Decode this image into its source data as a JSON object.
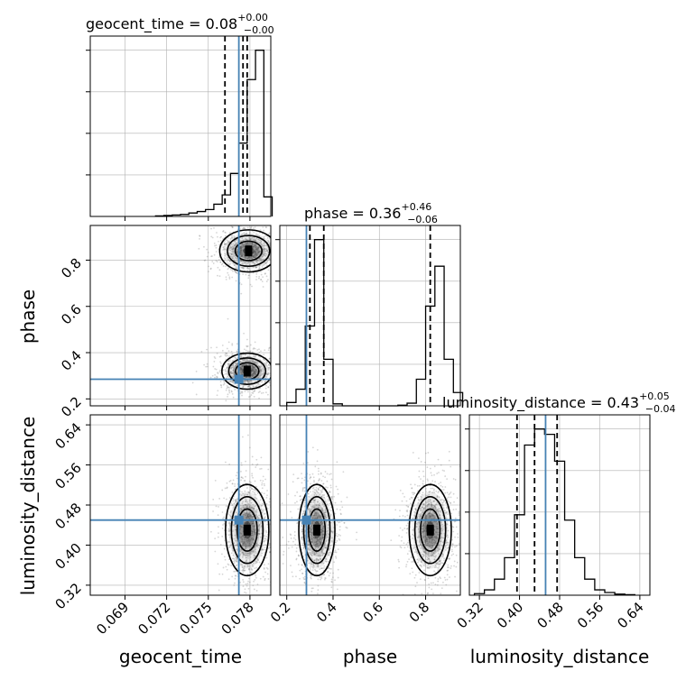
{
  "chart_data": [
    {
      "type": "histogram",
      "panel": "geocent_time",
      "title": {
        "name": "geocent_time",
        "value": "0.08",
        "plus": "+0.00",
        "minus": "−0.00"
      },
      "x_range": [
        0.0665,
        0.0795
      ],
      "bins": [
        0.0712,
        0.0718,
        0.0724,
        0.073,
        0.0736,
        0.0742,
        0.0748,
        0.0754,
        0.076,
        0.0766,
        0.0772,
        0.0778,
        0.0784,
        0.079
      ],
      "values": [
        1,
        2,
        3,
        4,
        7,
        10,
        14,
        25,
        44,
        88,
        150,
        280,
        340,
        40
      ],
      "quantiles": [
        0.0762,
        0.0775,
        0.0778
      ],
      "truth": 0.0772
    },
    {
      "type": "contour",
      "panel": "phase vs geocent_time",
      "x_range": [
        0.0665,
        0.0795
      ],
      "y_range": [
        0.17,
        0.95
      ],
      "truth": {
        "x": 0.0772,
        "y": 0.285
      },
      "modes": [
        {
          "x": 0.0778,
          "y": 0.32,
          "sx": 0.0007,
          "sy": 0.03
        },
        {
          "x": 0.0779,
          "y": 0.84,
          "sx": 0.0008,
          "sy": 0.035
        }
      ]
    },
    {
      "type": "histogram",
      "panel": "phase",
      "title": {
        "name": "phase",
        "value": "0.36",
        "plus": "+0.46",
        "minus": "−0.06"
      },
      "x_range": [
        0.17,
        0.95
      ],
      "bins": [
        0.2,
        0.24,
        0.28,
        0.32,
        0.36,
        0.4,
        0.44,
        0.48,
        0.52,
        0.56,
        0.6,
        0.64,
        0.68,
        0.72,
        0.76,
        0.8,
        0.84,
        0.88,
        0.92
      ],
      "values": [
        5,
        25,
        120,
        250,
        70,
        3,
        0,
        0,
        0,
        0,
        0,
        0,
        1,
        4,
        40,
        150,
        210,
        70,
        20
      ],
      "quantiles": [
        0.3,
        0.36,
        0.82
      ],
      "truth": 0.285
    },
    {
      "type": "contour",
      "panel": "luminosity_distance vs geocent_time",
      "x_range": [
        0.0665,
        0.0795
      ],
      "y_range": [
        0.3,
        0.66
      ],
      "yticks": [
        "0.32",
        "0.40",
        "0.48",
        "0.56",
        "0.64"
      ],
      "truth": {
        "x": 0.0772,
        "y": 0.45
      },
      "modes": [
        {
          "x": 0.0778,
          "y": 0.43,
          "sx": 0.0006,
          "sy": 0.035
        }
      ]
    },
    {
      "type": "contour",
      "panel": "luminosity_distance vs phase",
      "x_range": [
        0.17,
        0.95
      ],
      "y_range": [
        0.3,
        0.66
      ],
      "truth": {
        "x": 0.285,
        "y": 0.45
      },
      "modes": [
        {
          "x": 0.33,
          "y": 0.43,
          "sx": 0.03,
          "sy": 0.035
        },
        {
          "x": 0.82,
          "y": 0.43,
          "sx": 0.035,
          "sy": 0.035
        }
      ]
    },
    {
      "type": "histogram",
      "panel": "luminosity_distance",
      "title": {
        "name": "luminosity_distance",
        "value": "0.43",
        "plus": "+0.05",
        "minus": "−0.04"
      },
      "x_range": [
        0.3,
        0.66
      ],
      "bins": [
        0.31,
        0.33,
        0.35,
        0.37,
        0.39,
        0.41,
        0.43,
        0.45,
        0.47,
        0.49,
        0.51,
        0.53,
        0.55,
        0.57,
        0.59,
        0.61
      ],
      "values": [
        3,
        10,
        30,
        70,
        150,
        280,
        310,
        300,
        250,
        140,
        70,
        30,
        10,
        5,
        2,
        1
      ],
      "quantiles": [
        0.395,
        0.43,
        0.475
      ],
      "truth": 0.452
    }
  ],
  "axes": {
    "geocent_time": {
      "label": "geocent_time",
      "ticks": [
        {
          "v": 0.069,
          "t": "0.069"
        },
        {
          "v": 0.072,
          "t": "0.072"
        },
        {
          "v": 0.075,
          "t": "0.075"
        },
        {
          "v": 0.078,
          "t": "0.078"
        }
      ]
    },
    "phase": {
      "label": "phase",
      "ticks": [
        {
          "v": 0.2,
          "t": "0.2"
        },
        {
          "v": 0.4,
          "t": "0.4"
        },
        {
          "v": 0.6,
          "t": "0.6"
        },
        {
          "v": 0.8,
          "t": "0.8"
        }
      ]
    },
    "luminosity_distance": {
      "label": "luminosity_distance",
      "ticks": [
        {
          "v": 0.32,
          "t": "0.32"
        },
        {
          "v": 0.4,
          "t": "0.40"
        },
        {
          "v": 0.48,
          "t": "0.48"
        },
        {
          "v": 0.56,
          "t": "0.56"
        },
        {
          "v": 0.64,
          "t": "0.64"
        }
      ]
    }
  },
  "colors": {
    "truth": "#4682b4",
    "contour": "#000000",
    "grid": "#b0b0b0",
    "scatter": "#888888"
  }
}
